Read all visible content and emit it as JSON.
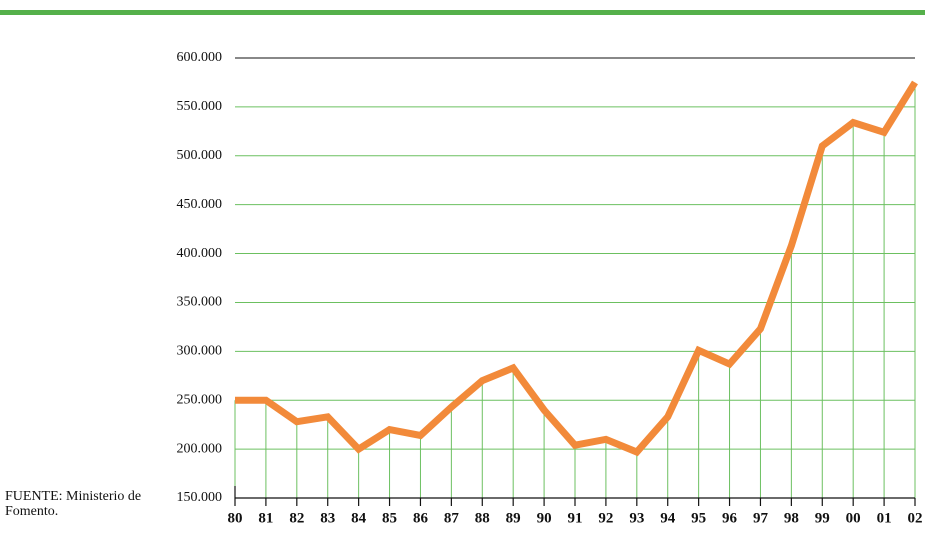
{
  "chart_data": {
    "type": "line",
    "categories": [
      "80",
      "81",
      "82",
      "83",
      "84",
      "85",
      "86",
      "87",
      "88",
      "89",
      "90",
      "91",
      "92",
      "93",
      "94",
      "95",
      "96",
      "97",
      "98",
      "99",
      "00",
      "01",
      "02"
    ],
    "values": [
      250000,
      250000,
      228000,
      233000,
      200000,
      220000,
      214000,
      243000,
      270000,
      283000,
      240000,
      204000,
      210000,
      197000,
      233000,
      301000,
      287000,
      323000,
      408000,
      510000,
      534000,
      524000,
      575000
    ],
    "color": "#f28a3a",
    "ylim": [
      150000,
      600000
    ],
    "yticks": [
      {
        "value": 150000,
        "label": "150.000"
      },
      {
        "value": 200000,
        "label": "200.000"
      },
      {
        "value": 250000,
        "label": "250.000"
      },
      {
        "value": 300000,
        "label": "300.000"
      },
      {
        "value": 350000,
        "label": "350.000"
      },
      {
        "value": 400000,
        "label": "400.000"
      },
      {
        "value": 450000,
        "label": "450.000"
      },
      {
        "value": 500000,
        "label": "500.000"
      },
      {
        "value": 550000,
        "label": "550.000"
      },
      {
        "value": 600000,
        "label": "600.000"
      }
    ],
    "grid": true,
    "source": "FUENTE: Ministerio de Fomento."
  }
}
